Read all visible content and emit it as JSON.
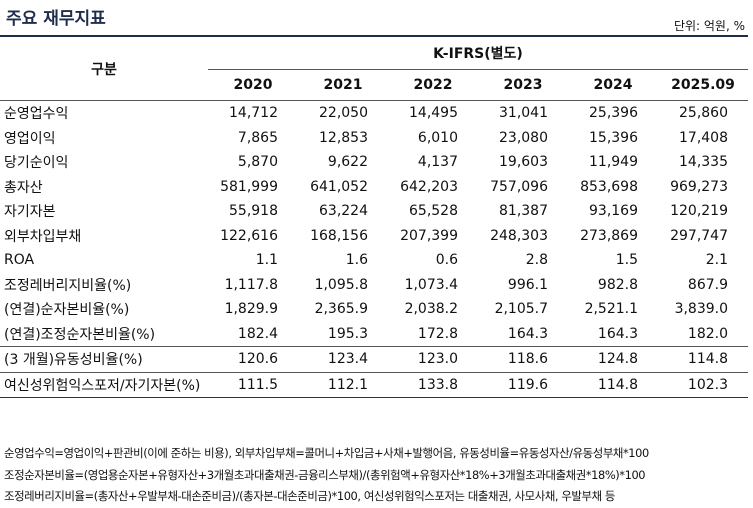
{
  "header": {
    "title": "주요 재무지표",
    "unit": "단위: 억원, %"
  },
  "table": {
    "corner": "구분",
    "group": "K-IFRS(별도)",
    "years": [
      "2020",
      "2021",
      "2022",
      "2023",
      "2024",
      "2025.09"
    ],
    "rows": [
      [
        "순영업수익",
        "14,712",
        "22,050",
        "14,495",
        "31,041",
        "25,396",
        "25,860"
      ],
      [
        "영업이익",
        "7,865",
        "12,853",
        "6,010",
        "23,080",
        "15,396",
        "17,408"
      ],
      [
        "당기순이익",
        "5,870",
        "9,622",
        "4,137",
        "19,603",
        "11,949",
        "14,335"
      ],
      [
        "총자산",
        "581,999",
        "641,052",
        "642,203",
        "757,096",
        "853,698",
        "969,273"
      ],
      [
        "자기자본",
        "55,918",
        "63,224",
        "65,528",
        "81,387",
        "93,169",
        "120,219"
      ],
      [
        "외부차입부채",
        "122,616",
        "168,156",
        "207,399",
        "248,303",
        "273,869",
        "297,747"
      ],
      [
        "ROA",
        "1.1",
        "1.6",
        "0.6",
        "2.8",
        "1.5",
        "2.1"
      ],
      [
        "조정레버리지비율(%)",
        "1,117.8",
        "1,095.8",
        "1,073.4",
        "996.1",
        "982.8",
        "867.9"
      ],
      [
        "(연결)순자본비율(%)",
        "1,829.9",
        "2,365.9",
        "2,038.2",
        "2,105.7",
        "2,521.1",
        "3,839.0"
      ],
      [
        "(연결)조정순자본비율(%)",
        "182.4",
        "195.3",
        "172.8",
        "164.3",
        "164.3",
        "182.0"
      ],
      [
        "(3 개월)유동성비율(%)",
        "120.6",
        "123.4",
        "123.0",
        "118.6",
        "124.8",
        "114.8"
      ],
      [
        "여신성위험익스포저/자기자본(%)",
        "111.5",
        "112.1",
        "133.8",
        "119.6",
        "114.8",
        "102.3"
      ]
    ]
  },
  "notes": [
    "순영업수익=영업이익+판관비(이에 준하는 비용), 외부차입부채=콜머니+차입금+사채+발행어음, 유동성비율=유동성자산/유동성부채*100",
    "조정순자본비율=(영업용순자본+유형자산+3개월초과대출채권-금융리스부채)/(총위험액+유형자산*18%+3개월초과대출채권*18%)*100",
    "조정레버리지비율=(총자산+우발부채-대손준비금)/(총자본-대손준비금)*100, 여신성위험익스포저는 대출채권, 사모사채, 우발부채 등"
  ]
}
